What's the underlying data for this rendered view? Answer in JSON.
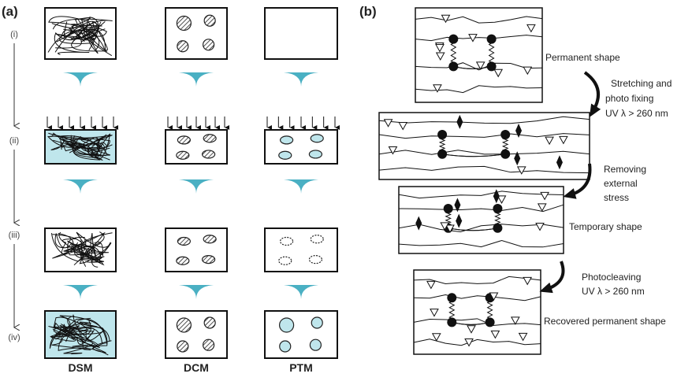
{
  "panel_a": {
    "label": "(a)",
    "steps": [
      "(i)",
      "(ii)",
      "(iii)",
      "(iv)"
    ],
    "columns": [
      "DSM",
      "DCM",
      "PTM"
    ]
  },
  "panel_b": {
    "label": "(b)",
    "stages": [
      "Permanent shape",
      "Temporary shape",
      "Recovered permanent shape"
    ],
    "transitions": [
      [
        "Stretching and",
        "photo fixing",
        "UV λ > 260 nm"
      ],
      [
        "Removing",
        "external",
        "stress"
      ],
      [
        "Photocleaving",
        "UV λ > 260 nm"
      ]
    ]
  }
}
